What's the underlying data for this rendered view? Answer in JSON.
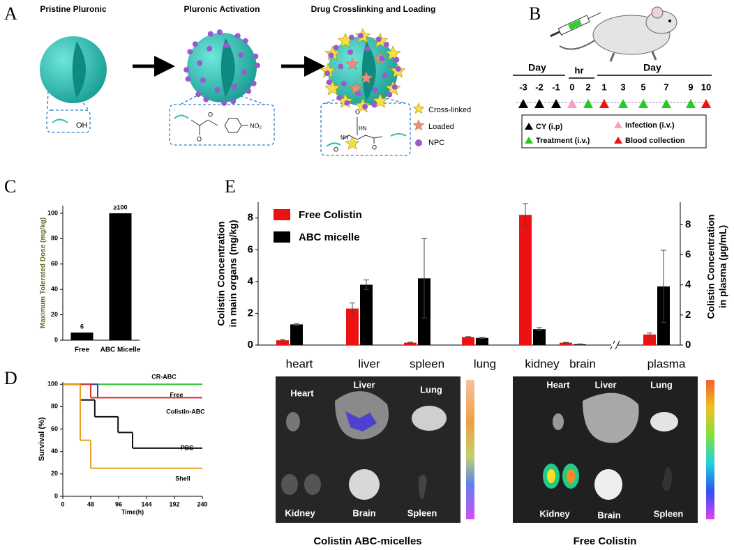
{
  "panel_labels": {
    "a": "A",
    "b": "B",
    "c": "C",
    "d": "D",
    "e": "E"
  },
  "panel_a": {
    "steps": [
      "Pristine Pluronic",
      "Pluronic Activation",
      "Drug Crosslinking and Loading"
    ],
    "box1": [
      "OH"
    ],
    "box2": [
      "O",
      "O",
      "NO₂"
    ],
    "box3": [
      "O",
      "HN",
      "NH",
      "O",
      "O"
    ],
    "legend": [
      "Cross-linked",
      "Loaded",
      "NPC"
    ]
  },
  "panel_b": {
    "headers": [
      "Day",
      "hr",
      "Day"
    ],
    "timepoints": [
      "-3",
      "-2",
      "-1",
      "0",
      "2",
      "1",
      "3",
      "5",
      "7",
      "9",
      "10"
    ],
    "legend": [
      "CY (i.p)",
      "Infection (i.v.)",
      "Treatment (i.v.)",
      "Blood collection"
    ]
  },
  "chart_data": [
    {
      "type": "bar",
      "ylabel": "Maximum Tolerated Dose (mg/kg)",
      "categories": [
        "Free",
        "ABC Micelle"
      ],
      "values": [
        6,
        100
      ],
      "value_labels": [
        "6",
        "≥100"
      ],
      "color": "#000000",
      "ylim": [
        0,
        106
      ],
      "yticks": [
        0,
        20,
        40,
        60,
        80,
        100
      ]
    },
    {
      "type": "line",
      "step": true,
      "xlabel": "Time(h)",
      "ylabel": "Survival (%)",
      "xlim": [
        0,
        240
      ],
      "xticks": [
        0,
        48,
        96,
        144,
        192,
        240
      ],
      "ylim": [
        0,
        102
      ],
      "yticks": [
        0,
        20,
        40,
        60,
        80,
        100
      ],
      "series": [
        {
          "name": "CR-ABC",
          "color": "#2ec52e",
          "x": [
            0,
            240
          ],
          "values": [
            100,
            100
          ]
        },
        {
          "name": "Free",
          "color": "#3838c8",
          "x": [
            0,
            60,
            240
          ],
          "values": [
            100,
            88,
            88
          ]
        },
        {
          "name": "Colistin-ABC",
          "color": "#e03030",
          "x": [
            0,
            48,
            240
          ],
          "values": [
            100,
            88,
            88
          ]
        },
        {
          "name": "PBS",
          "color": "#111111",
          "x": [
            0,
            30,
            55,
            95,
            120,
            240
          ],
          "values": [
            100,
            86,
            71,
            57,
            43,
            43
          ]
        },
        {
          "name": "Shell",
          "color": "#e8a020",
          "x": [
            0,
            30,
            48,
            240
          ],
          "values": [
            100,
            50,
            25,
            25
          ]
        }
      ]
    },
    {
      "type": "bar",
      "ylabel": [
        "Colistin Concentration",
        "in main organs (mg/kg)"
      ],
      "y2label": [
        "Colistin Concentration",
        "in plasma (µg/mL)"
      ],
      "categories": [
        "heart",
        "liver",
        "spleen",
        "lung",
        "kidney",
        "brain",
        "plasma"
      ],
      "axis_by_category": [
        "y",
        "y",
        "y",
        "y",
        "y",
        "y",
        "y2"
      ],
      "ylim": [
        0,
        9
      ],
      "yticks": [
        0,
        2,
        4,
        6,
        8
      ],
      "y2lim": [
        0,
        9.5
      ],
      "y2ticks": [
        0,
        2,
        4,
        6,
        8
      ],
      "series": [
        {
          "name": "Free Colistin",
          "color": "#ee1111",
          "values": [
            0.3,
            2.3,
            0.15,
            0.5,
            8.2,
            0.15,
            0.7
          ],
          "errors": [
            0.05,
            0.35,
            0.03,
            0.03,
            0.7,
            0.02,
            0.1
          ]
        },
        {
          "name": "ABC micelle",
          "color": "#000000",
          "values": [
            1.3,
            3.8,
            4.2,
            0.45,
            1.0,
            0.05,
            3.9
          ],
          "errors": [
            0.05,
            0.3,
            2.5,
            0.03,
            0.1,
            0.02,
            2.4
          ]
        }
      ]
    }
  ],
  "imaging": {
    "titles": [
      "Colistin ABC-micelles",
      "Free Colistin"
    ],
    "left_organs": [
      "Heart",
      "Liver",
      "Lung",
      "Kidney",
      "Brain",
      "Spleen"
    ],
    "right_organs": [
      "Heart",
      "Liver",
      "Lung",
      "Kidney",
      "Brain",
      "Spleen"
    ]
  }
}
